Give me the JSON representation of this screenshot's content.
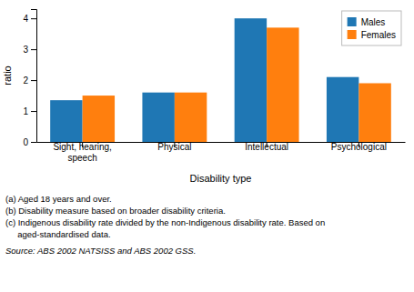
{
  "chart_data": {
    "type": "bar",
    "categories": [
      "Sight, hearing,\nspeech",
      "Physical",
      "Intellectual",
      "Psychological"
    ],
    "series": [
      {
        "name": "Males",
        "values": [
          1.35,
          1.6,
          4.0,
          2.1
        ]
      },
      {
        "name": "Females",
        "values": [
          1.5,
          1.6,
          3.7,
          1.9
        ]
      }
    ],
    "ylabel": "ratio",
    "xlabel": "Disability type",
    "ylim": [
      0,
      4.3
    ],
    "yticks": [
      0,
      1,
      2,
      3,
      4
    ],
    "grid": false,
    "legend": "top-right",
    "annotations": [
      "(a) Aged 18 years and over.",
      "(b) Disability measure based on broader disability criteria.",
      "(c) Indigenous disability rate divided by the non-Indigenous disability rate. Based on",
      "     aged-standardised data."
    ],
    "source": "Source: ABS 2002 NATSISS and ABS 2002 GSS."
  }
}
